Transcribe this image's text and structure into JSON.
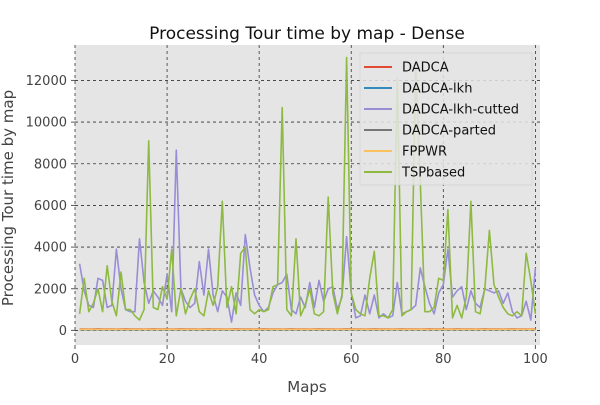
{
  "chart_data": {
    "type": "line",
    "title": "Processing Tour time by map - Dense",
    "xlabel": "Maps",
    "ylabel": "Processing Tour time by map",
    "xlim": [
      0,
      101
    ],
    "ylim": [
      -700,
      13700
    ],
    "xticks": [
      0,
      20,
      40,
      60,
      80,
      100
    ],
    "yticks": [
      0,
      2000,
      4000,
      6000,
      8000,
      10000,
      12000
    ],
    "grid": true,
    "legend_position": "top-right",
    "x": [
      1,
      2,
      3,
      4,
      5,
      6,
      7,
      8,
      9,
      10,
      11,
      12,
      13,
      14,
      15,
      16,
      17,
      18,
      19,
      20,
      21,
      22,
      23,
      24,
      25,
      26,
      27,
      28,
      29,
      30,
      31,
      32,
      33,
      34,
      35,
      36,
      37,
      38,
      39,
      40,
      41,
      42,
      43,
      44,
      45,
      46,
      47,
      48,
      49,
      50,
      51,
      52,
      53,
      54,
      55,
      56,
      57,
      58,
      59,
      60,
      61,
      62,
      63,
      64,
      65,
      66,
      67,
      68,
      69,
      70,
      71,
      72,
      73,
      74,
      75,
      76,
      77,
      78,
      79,
      80,
      81,
      82,
      83,
      84,
      85,
      86,
      87,
      88,
      89,
      90,
      91,
      92,
      93,
      94,
      95,
      96,
      97,
      98,
      99,
      100
    ],
    "series": [
      {
        "name": "DADCA",
        "color": "#E24A33",
        "values": [
          70,
          65,
          70,
          68,
          72,
          66,
          70,
          65,
          70,
          68,
          72,
          66,
          70,
          65,
          70,
          68,
          72,
          66,
          70,
          65,
          70,
          68,
          72,
          66,
          70,
          65,
          70,
          68,
          72,
          66,
          70,
          65,
          70,
          68,
          72,
          66,
          70,
          65,
          70,
          68,
          72,
          66,
          70,
          65,
          70,
          68,
          72,
          66,
          70,
          65,
          70,
          68,
          72,
          66,
          70,
          65,
          70,
          68,
          72,
          66,
          70,
          65,
          70,
          68,
          72,
          66,
          70,
          65,
          70,
          68,
          72,
          66,
          70,
          65,
          70,
          68,
          72,
          66,
          70,
          65,
          70,
          68,
          72,
          66,
          70,
          65,
          70,
          68,
          72,
          66,
          70,
          65,
          70,
          68,
          72,
          66,
          70,
          65,
          70,
          68
        ]
      },
      {
        "name": "DADCA-lkh",
        "color": "#348ABD",
        "values": [
          30,
          28,
          32,
          30,
          29,
          31,
          30,
          28,
          32,
          30,
          29,
          31,
          30,
          28,
          32,
          30,
          29,
          31,
          30,
          28,
          32,
          30,
          29,
          31,
          30,
          28,
          32,
          30,
          29,
          31,
          30,
          28,
          32,
          30,
          29,
          31,
          30,
          28,
          32,
          30,
          29,
          31,
          30,
          28,
          32,
          30,
          29,
          31,
          30,
          28,
          32,
          30,
          29,
          31,
          30,
          28,
          32,
          30,
          29,
          31,
          30,
          28,
          32,
          30,
          29,
          31,
          30,
          28,
          32,
          30,
          29,
          31,
          30,
          28,
          32,
          30,
          29,
          31,
          30,
          28,
          32,
          30,
          29,
          31,
          30,
          28,
          32,
          30,
          29,
          31,
          30,
          28,
          32,
          30,
          29,
          31,
          30,
          28,
          32,
          30
        ]
      },
      {
        "name": "DADCA-lkh-cutted",
        "color": "#988ED5",
        "values": [
          3200,
          1900,
          1200,
          1100,
          2500,
          2400,
          1100,
          1200,
          3900,
          2000,
          1000,
          900,
          900,
          4400,
          2300,
          1300,
          1900,
          1600,
          1200,
          2700,
          900,
          8650,
          2000,
          1400,
          1100,
          1300,
          3300,
          1700,
          3900,
          1700,
          900,
          1900,
          1600,
          400,
          1800,
          1200,
          4600,
          3000,
          1700,
          1200,
          900,
          1100,
          1800,
          2200,
          2300,
          2700,
          1000,
          800,
          1600,
          1100,
          2300,
          1100,
          2400,
          1400,
          2000,
          2100,
          1000,
          1600,
          4500,
          1800,
          600,
          700,
          1700,
          800,
          1700,
          600,
          800,
          600,
          700,
          2300,
          800,
          900,
          1000,
          1200,
          3000,
          2100,
          1300,
          800,
          1800,
          2200,
          3900,
          1600,
          1900,
          2100,
          1000,
          1900,
          1300,
          1100,
          2000,
          1900,
          1800,
          1900,
          1300,
          1800,
          900,
          600,
          700,
          1400,
          500,
          3000
        ]
      },
      {
        "name": "DADCA-parted",
        "color": "#777777",
        "values": [
          40,
          38,
          42,
          40,
          39,
          41,
          40,
          38,
          42,
          40,
          39,
          41,
          40,
          38,
          42,
          40,
          39,
          41,
          40,
          38,
          42,
          40,
          39,
          41,
          40,
          38,
          42,
          40,
          39,
          41,
          40,
          38,
          42,
          40,
          39,
          41,
          40,
          38,
          42,
          40,
          39,
          41,
          40,
          38,
          42,
          40,
          39,
          41,
          40,
          38,
          42,
          40,
          39,
          41,
          40,
          38,
          42,
          40,
          39,
          41,
          40,
          38,
          42,
          40,
          39,
          41,
          40,
          38,
          42,
          40,
          39,
          41,
          40,
          38,
          42,
          40,
          39,
          41,
          40,
          38,
          42,
          40,
          39,
          41,
          40,
          38,
          42,
          40,
          39,
          41,
          40,
          38,
          42,
          40,
          39,
          41,
          40,
          38,
          42,
          40
        ]
      },
      {
        "name": "FPPWR",
        "color": "#FBC15E",
        "values": [
          50,
          48,
          52,
          50,
          49,
          51,
          50,
          48,
          52,
          50,
          49,
          51,
          50,
          48,
          52,
          50,
          49,
          51,
          50,
          48,
          52,
          50,
          49,
          51,
          50,
          48,
          52,
          50,
          49,
          51,
          50,
          48,
          52,
          50,
          49,
          51,
          50,
          48,
          52,
          50,
          49,
          51,
          50,
          48,
          52,
          50,
          49,
          51,
          50,
          48,
          52,
          50,
          49,
          51,
          50,
          48,
          52,
          50,
          49,
          51,
          50,
          48,
          52,
          50,
          49,
          51,
          50,
          48,
          52,
          50,
          49,
          51,
          50,
          48,
          52,
          50,
          49,
          51,
          50,
          48,
          52,
          50,
          49,
          51,
          50,
          48,
          52,
          50,
          49,
          51,
          50,
          48,
          52,
          50,
          49,
          51,
          50,
          48,
          52,
          50
        ]
      },
      {
        "name": "TSPbased",
        "color": "#8EBA42",
        "values": [
          800,
          2500,
          900,
          1300,
          2000,
          900,
          3100,
          1400,
          700,
          2800,
          1000,
          1000,
          700,
          500,
          1000,
          9100,
          1100,
          1000,
          2100,
          1500,
          3900,
          700,
          2000,
          800,
          1500,
          2000,
          900,
          700,
          1900,
          1200,
          2100,
          6200,
          1100,
          2100,
          800,
          3700,
          4000,
          1000,
          800,
          1000,
          900,
          1000,
          2100,
          2200,
          10700,
          1000,
          700,
          4400,
          700,
          1200,
          2000,
          800,
          700,
          900,
          6400,
          1800,
          800,
          1700,
          13100,
          1800,
          1000,
          800,
          700,
          2500,
          3800,
          700,
          700,
          600,
          1000,
          12100,
          700,
          900,
          1000,
          12600,
          7100,
          900,
          900,
          1100,
          2500,
          2400,
          5800,
          600,
          1200,
          600,
          1600,
          6200,
          900,
          800,
          2000,
          4800,
          2200,
          1600,
          1100,
          800,
          700,
          900,
          700,
          3700,
          2400,
          800
        ]
      }
    ]
  }
}
